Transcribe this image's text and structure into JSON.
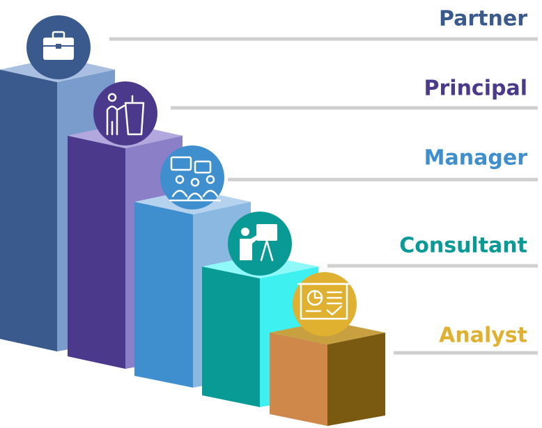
{
  "levels": [
    {
      "label": "Partner"
    },
    {
      "label": "Principal"
    },
    {
      "label": "Manager"
    },
    {
      "label": "Consultant"
    },
    {
      "label": "Analyst"
    }
  ]
}
